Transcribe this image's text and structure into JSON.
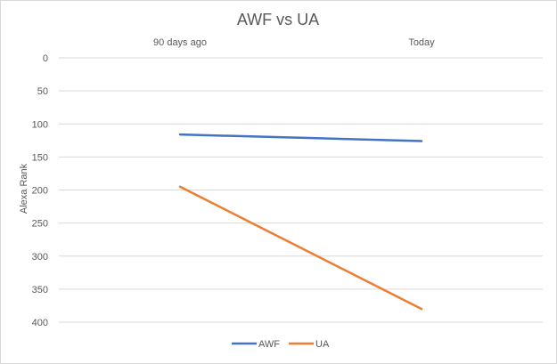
{
  "chart_data": {
    "type": "line",
    "title": "AWF vs UA",
    "xlabel": "",
    "ylabel": "Alexa Rank",
    "categories": [
      "90 days ago",
      "Today"
    ],
    "x_axis_position": "top",
    "y_reversed": true,
    "ylim": [
      0,
      400
    ],
    "y_ticks": [
      0,
      50,
      100,
      150,
      200,
      250,
      300,
      350,
      400
    ],
    "grid": true,
    "legend_position": "bottom",
    "series": [
      {
        "name": "AWF",
        "values": [
          116,
          126
        ],
        "color": "#4472c4"
      },
      {
        "name": "UA",
        "values": [
          195,
          380
        ],
        "color": "#ed7d31"
      }
    ]
  }
}
